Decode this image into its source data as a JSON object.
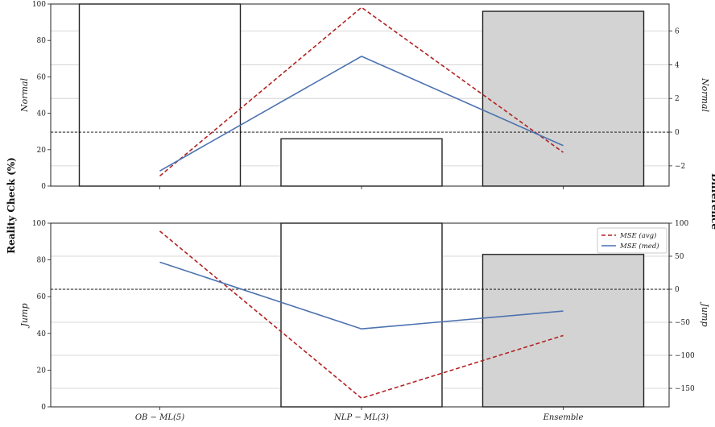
{
  "chart_data": [
    {
      "type": "bar",
      "panel": "top",
      "categories": [
        "OB − ML(5)",
        "NLP − ML(3)",
        "Ensemble"
      ],
      "bars": {
        "name": "Reality Check (%)",
        "values": [
          100,
          26,
          96
        ],
        "fills": [
          "#ffffff",
          "#ffffff",
          "#d3d3d3"
        ]
      },
      "ylabel_left": "Normal",
      "ylabel_right": "Normal",
      "ylim_left": [
        0,
        100
      ],
      "yticks_left": [
        0,
        20,
        40,
        60,
        80,
        100
      ],
      "ylim_right": [
        -3.2,
        7.6
      ],
      "yticks_right": [
        -2,
        0,
        2,
        4,
        6
      ],
      "zero_line": 0,
      "series": [
        {
          "name": "MSE (avg)",
          "axis": "right",
          "values": [
            -2.6,
            7.4,
            -1.2
          ],
          "color": "#b22222",
          "style": "dashed"
        },
        {
          "name": "MSE (med)",
          "axis": "right",
          "values": [
            -2.3,
            4.5,
            -0.8
          ],
          "color": "#4c72b0",
          "style": "solid"
        }
      ],
      "grid": "horizontal"
    },
    {
      "type": "bar",
      "panel": "bottom",
      "categories": [
        "OB − ML(5)",
        "NLP − ML(3)",
        "Ensemble"
      ],
      "bars": {
        "name": "Reality Check (%)",
        "values": [
          0,
          100,
          83
        ],
        "fills": [
          "#ffffff",
          "#ffffff",
          "#d3d3d3"
        ]
      },
      "ylabel_left": "Jump",
      "ylabel_right": "Jump",
      "ylim_left": [
        0,
        100
      ],
      "yticks_left": [
        0,
        20,
        40,
        60,
        80,
        100
      ],
      "ylim_right": [
        -178,
        100
      ],
      "yticks_right": [
        -150,
        -100,
        -50,
        0,
        50,
        100
      ],
      "zero_line": 0,
      "series": [
        {
          "name": "MSE (avg)",
          "axis": "right",
          "values": [
            88,
            -165,
            -70
          ],
          "color": "#b22222",
          "style": "dashed"
        },
        {
          "name": "MSE (med)",
          "axis": "right",
          "values": [
            41,
            -60,
            -33
          ],
          "color": "#4c72b0",
          "style": "solid"
        }
      ],
      "legend": {
        "position": "top-right",
        "entries": [
          "MSE (avg)",
          "MSE (med)"
        ]
      },
      "grid": "horizontal"
    }
  ],
  "shared": {
    "ylabel_left": "Reality Check (%)",
    "ylabel_right": "Difference"
  }
}
